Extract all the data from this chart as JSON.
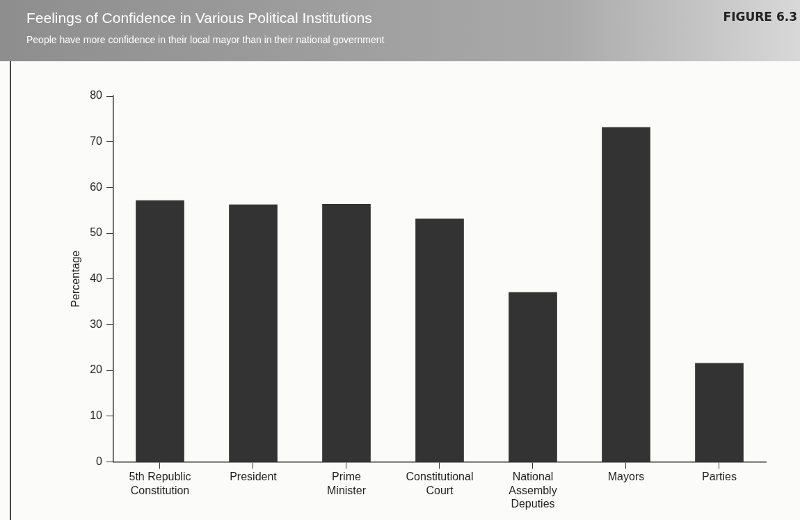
{
  "chart_data": {
    "type": "bar",
    "title": "Feelings of Confidence in Various Political Institutions",
    "subtitle": "People have more confidence in their local mayor than in their national government",
    "annotations": [
      "FIGURE 6.3"
    ],
    "ylabel": "Percentage",
    "categories": [
      "5th Republic Constitution",
      "President",
      "Prime Minister",
      "Constitutional Court",
      "National Assembly Deputies",
      "Mayors",
      "Parties"
    ],
    "values": [
      57.2,
      56.3,
      56.4,
      53.2,
      37.1,
      73.2,
      21.6
    ],
    "color": "#333333",
    "ylim": [
      0,
      80
    ],
    "yticks": [
      0,
      10,
      20,
      30,
      40,
      50,
      60,
      70,
      80
    ],
    "grid": false,
    "legend": false
  }
}
